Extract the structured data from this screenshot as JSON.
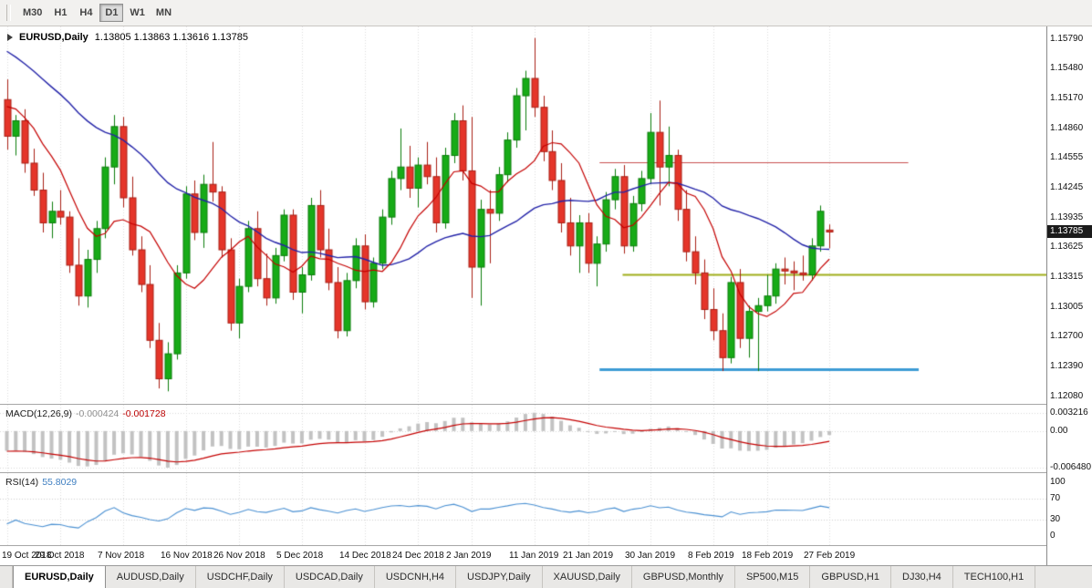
{
  "toolbar": {
    "timeframes": [
      "M30",
      "H1",
      "H4",
      "D1",
      "W1",
      "MN"
    ],
    "active": "D1"
  },
  "chart": {
    "symbol_title": "EURUSD,Daily",
    "ohlc_text": "1.13805 1.13863 1.13616 1.13785"
  },
  "macd": {
    "name": "MACD(12,26,9)",
    "main_value": "-0.000424",
    "signal_value": "-0.001728"
  },
  "rsi": {
    "name": "RSI(14)",
    "value": "55.8029"
  },
  "tabs": {
    "active_index": 0,
    "items": [
      "EURUSD,Daily",
      "AUDUSD,Daily",
      "USDCHF,Daily",
      "USDCAD,Daily",
      "USDCNH,H4",
      "USDJPY,Daily",
      "XAUUSD,Daily",
      "GBPUSD,Monthly",
      "SP500,M15",
      "GBPUSD,H1",
      "DJ30,H4",
      "TECH100,H1"
    ]
  },
  "colors": {
    "up_fill": "#17ab17",
    "up_border": "#0b7d0b",
    "down_fill": "#e5352a",
    "down_border": "#a81f15",
    "ma_blue": "#2323a8",
    "ma_red": "#c40000",
    "macd_hist": "#c2c2c2",
    "macd_signal": "#c40000",
    "rsi_line": "#4a90d2",
    "grid": "#dcdcdc",
    "badge_bg": "#1b1b1b",
    "badge_text": "#ffffff"
  },
  "chart_data": {
    "type": "candlestick",
    "symbol": "EURUSD",
    "timeframe": "Daily",
    "price_panel": {
      "ylim": [
        1.12,
        1.1592
      ],
      "axis_labels": [
        "1.15790",
        "1.15480",
        "1.15170",
        "1.14860",
        "1.14555",
        "1.14245",
        "1.13935",
        "1.13625",
        "1.13315",
        "1.13005",
        "1.12700",
        "1.12390",
        "1.12080"
      ],
      "current_price": "1.13785",
      "ma_blue_period": 30,
      "ma_red_period": 8,
      "hlines": [
        {
          "name": "resistance-line",
          "price": 1.1451,
          "x1": 0.573,
          "x2": 0.868,
          "color": "#c94f4f",
          "width": 1
        },
        {
          "name": "neckline-line",
          "price": 1.1334,
          "x1": 0.595,
          "x2": 1.0,
          "color": "#9fae1b",
          "width": 2
        },
        {
          "name": "support-line",
          "price": 1.1236,
          "x1": 0.573,
          "x2": 0.878,
          "color": "#3d9bd4",
          "width": 3
        }
      ]
    },
    "prehistory_closes": [
      1.1705,
      1.1695,
      1.1688,
      1.1692,
      1.168,
      1.1668,
      1.1674,
      1.166,
      1.165,
      1.1638,
      1.1644,
      1.1628,
      1.1612,
      1.1618,
      1.16,
      1.1588,
      1.1594,
      1.1578,
      1.1566,
      1.1572,
      1.1556,
      1.1544,
      1.155,
      1.1536,
      1.1528,
      1.1534,
      1.152,
      1.1526,
      1.1514,
      1.1522,
      1.151,
      1.1516,
      1.1504,
      1.1512,
      1.1514
    ],
    "candles_ohlc": [
      [
        1.1516,
        1.1537,
        1.1464,
        1.1478
      ],
      [
        1.1478,
        1.15,
        1.1458,
        1.1494
      ],
      [
        1.1494,
        1.1506,
        1.144,
        1.145
      ],
      [
        1.145,
        1.1465,
        1.1416,
        1.1422
      ],
      [
        1.1422,
        1.144,
        1.1378,
        1.1388
      ],
      [
        1.1388,
        1.141,
        1.1372,
        1.14
      ],
      [
        1.14,
        1.1422,
        1.1386,
        1.1394
      ],
      [
        1.1394,
        1.14,
        1.1336,
        1.1344
      ],
      [
        1.1344,
        1.1372,
        1.1302,
        1.1312
      ],
      [
        1.1312,
        1.136,
        1.13,
        1.135
      ],
      [
        1.135,
        1.139,
        1.1336,
        1.1382
      ],
      [
        1.1382,
        1.1456,
        1.1372,
        1.1446
      ],
      [
        1.1446,
        1.15,
        1.1428,
        1.1488
      ],
      [
        1.1488,
        1.1498,
        1.1404,
        1.1414
      ],
      [
        1.1414,
        1.1436,
        1.1354,
        1.136
      ],
      [
        1.136,
        1.1374,
        1.1316,
        1.1324
      ],
      [
        1.1324,
        1.1344,
        1.1258,
        1.1266
      ],
      [
        1.1266,
        1.1284,
        1.1216,
        1.1226
      ],
      [
        1.1226,
        1.1264,
        1.1213,
        1.1252
      ],
      [
        1.1252,
        1.1344,
        1.1246,
        1.1336
      ],
      [
        1.1336,
        1.1426,
        1.133,
        1.1418
      ],
      [
        1.1418,
        1.1432,
        1.137,
        1.1378
      ],
      [
        1.1378,
        1.1438,
        1.1362,
        1.1428
      ],
      [
        1.1428,
        1.1472,
        1.141,
        1.142
      ],
      [
        1.142,
        1.1426,
        1.1352,
        1.136
      ],
      [
        1.136,
        1.1372,
        1.1276,
        1.1284
      ],
      [
        1.1284,
        1.133,
        1.1268,
        1.1322
      ],
      [
        1.1322,
        1.139,
        1.1316,
        1.1382
      ],
      [
        1.1382,
        1.14,
        1.1322,
        1.133
      ],
      [
        1.133,
        1.1356,
        1.1302,
        1.131
      ],
      [
        1.131,
        1.1362,
        1.1304,
        1.1354
      ],
      [
        1.1354,
        1.1402,
        1.1348,
        1.1396
      ],
      [
        1.1396,
        1.1402,
        1.1308,
        1.1316
      ],
      [
        1.1316,
        1.1342,
        1.1294,
        1.1334
      ],
      [
        1.1334,
        1.1414,
        1.1328,
        1.1406
      ],
      [
        1.1406,
        1.1422,
        1.1352,
        1.136
      ],
      [
        1.136,
        1.1382,
        1.1318,
        1.1326
      ],
      [
        1.1326,
        1.1342,
        1.1268,
        1.1276
      ],
      [
        1.1276,
        1.1336,
        1.127,
        1.1328
      ],
      [
        1.1328,
        1.1372,
        1.132,
        1.1364
      ],
      [
        1.1364,
        1.1376,
        1.1298,
        1.1306
      ],
      [
        1.1306,
        1.1352,
        1.13,
        1.1346
      ],
      [
        1.1346,
        1.1402,
        1.134,
        1.1394
      ],
      [
        1.1394,
        1.1442,
        1.1386,
        1.1434
      ],
      [
        1.1434,
        1.1486,
        1.1422,
        1.1446
      ],
      [
        1.1446,
        1.1468,
        1.1414,
        1.1424
      ],
      [
        1.1424,
        1.1456,
        1.1404,
        1.1448
      ],
      [
        1.1448,
        1.1472,
        1.1428,
        1.1436
      ],
      [
        1.1436,
        1.1456,
        1.1378,
        1.1388
      ],
      [
        1.1388,
        1.1466,
        1.1382,
        1.1458
      ],
      [
        1.1458,
        1.1502,
        1.145,
        1.1494
      ],
      [
        1.1494,
        1.151,
        1.1432,
        1.1442
      ],
      [
        1.1442,
        1.1498,
        1.131,
        1.1342
      ],
      [
        1.1342,
        1.1412,
        1.1302,
        1.1402
      ],
      [
        1.1402,
        1.1422,
        1.1346,
        1.1398
      ],
      [
        1.1398,
        1.1446,
        1.139,
        1.1438
      ],
      [
        1.1438,
        1.1482,
        1.143,
        1.1474
      ],
      [
        1.1474,
        1.1528,
        1.1466,
        1.152
      ],
      [
        1.152,
        1.1546,
        1.1484,
        1.1538
      ],
      [
        1.1538,
        1.158,
        1.1498,
        1.1508
      ],
      [
        1.1508,
        1.152,
        1.1452,
        1.1462
      ],
      [
        1.1462,
        1.1484,
        1.1422,
        1.1432
      ],
      [
        1.1432,
        1.145,
        1.1378,
        1.1388
      ],
      [
        1.1388,
        1.1414,
        1.1354,
        1.1364
      ],
      [
        1.1364,
        1.1396,
        1.1336,
        1.1388
      ],
      [
        1.1388,
        1.1398,
        1.1336,
        1.1346
      ],
      [
        1.1346,
        1.1374,
        1.1322,
        1.1366
      ],
      [
        1.1366,
        1.142,
        1.1358,
        1.1412
      ],
      [
        1.1412,
        1.1444,
        1.1402,
        1.1436
      ],
      [
        1.1436,
        1.1448,
        1.1356,
        1.1364
      ],
      [
        1.1364,
        1.1416,
        1.1358,
        1.1408
      ],
      [
        1.1408,
        1.1442,
        1.14,
        1.1434
      ],
      [
        1.1434,
        1.1502,
        1.1428,
        1.1482
      ],
      [
        1.1482,
        1.1515,
        1.1406,
        1.1446
      ],
      [
        1.1446,
        1.1488,
        1.1426,
        1.1458
      ],
      [
        1.1458,
        1.1464,
        1.139,
        1.1402
      ],
      [
        1.1402,
        1.1422,
        1.1348,
        1.1358
      ],
      [
        1.1358,
        1.1374,
        1.1324,
        1.1336
      ],
      [
        1.1336,
        1.135,
        1.1288,
        1.1298
      ],
      [
        1.1298,
        1.132,
        1.1266,
        1.1276
      ],
      [
        1.1276,
        1.1294,
        1.1234,
        1.1248
      ],
      [
        1.1248,
        1.1332,
        1.1242,
        1.1326
      ],
      [
        1.1326,
        1.134,
        1.1258,
        1.1268
      ],
      [
        1.1268,
        1.1302,
        1.1248,
        1.1296
      ],
      [
        1.1296,
        1.131,
        1.1234,
        1.1302
      ],
      [
        1.1302,
        1.1334,
        1.1296,
        1.1312
      ],
      [
        1.1312,
        1.1346,
        1.1304,
        1.134
      ],
      [
        1.134,
        1.1352,
        1.1324,
        1.1338
      ],
      [
        1.1338,
        1.1348,
        1.1318,
        1.1336
      ],
      [
        1.1336,
        1.1354,
        1.1328,
        1.1334
      ],
      [
        1.1334,
        1.1372,
        1.1328,
        1.1364
      ],
      [
        1.1364,
        1.1406,
        1.1358,
        1.14
      ],
      [
        1.13805,
        1.13863,
        1.13616,
        1.13785
      ]
    ],
    "time_ticks": [
      {
        "i": 0,
        "label": "19 Oct 2018"
      },
      {
        "i": 6,
        "label": "29 Oct 2018"
      },
      {
        "i": 13,
        "label": "7 Nov 2018"
      },
      {
        "i": 20,
        "label": "16 Nov 2018"
      },
      {
        "i": 26,
        "label": "26 Nov 2018"
      },
      {
        "i": 33,
        "label": "5 Dec 2018"
      },
      {
        "i": 40,
        "label": "14 Dec 2018"
      },
      {
        "i": 46,
        "label": "24 Dec 2018"
      },
      {
        "i": 52,
        "label": "2 Jan 2019"
      },
      {
        "i": 59,
        "label": "11 Jan 2019"
      },
      {
        "i": 65,
        "label": "21 Jan 2019"
      },
      {
        "i": 72,
        "label": "30 Jan 2019"
      },
      {
        "i": 79,
        "label": "8 Feb 2019"
      },
      {
        "i": 85,
        "label": "18 Feb 2019"
      },
      {
        "i": 92,
        "label": "27 Feb 2019"
      }
    ],
    "macd_panel": {
      "ylim": [
        -0.0072,
        0.0046
      ],
      "axis": [
        {
          "v": 0.003216,
          "label": "0.003216"
        },
        {
          "v": 0,
          "label": "0.00"
        },
        {
          "v": -0.00648,
          "label": "-0.006480"
        }
      ]
    },
    "rsi_panel": {
      "ylim": [
        -18,
        118
      ],
      "levels": [
        70,
        30
      ],
      "axis": [
        {
          "v": 100,
          "label": "100"
        },
        {
          "v": 70,
          "label": "70"
        },
        {
          "v": 30,
          "label": "30"
        },
        {
          "v": 0,
          "label": "0"
        }
      ]
    }
  }
}
